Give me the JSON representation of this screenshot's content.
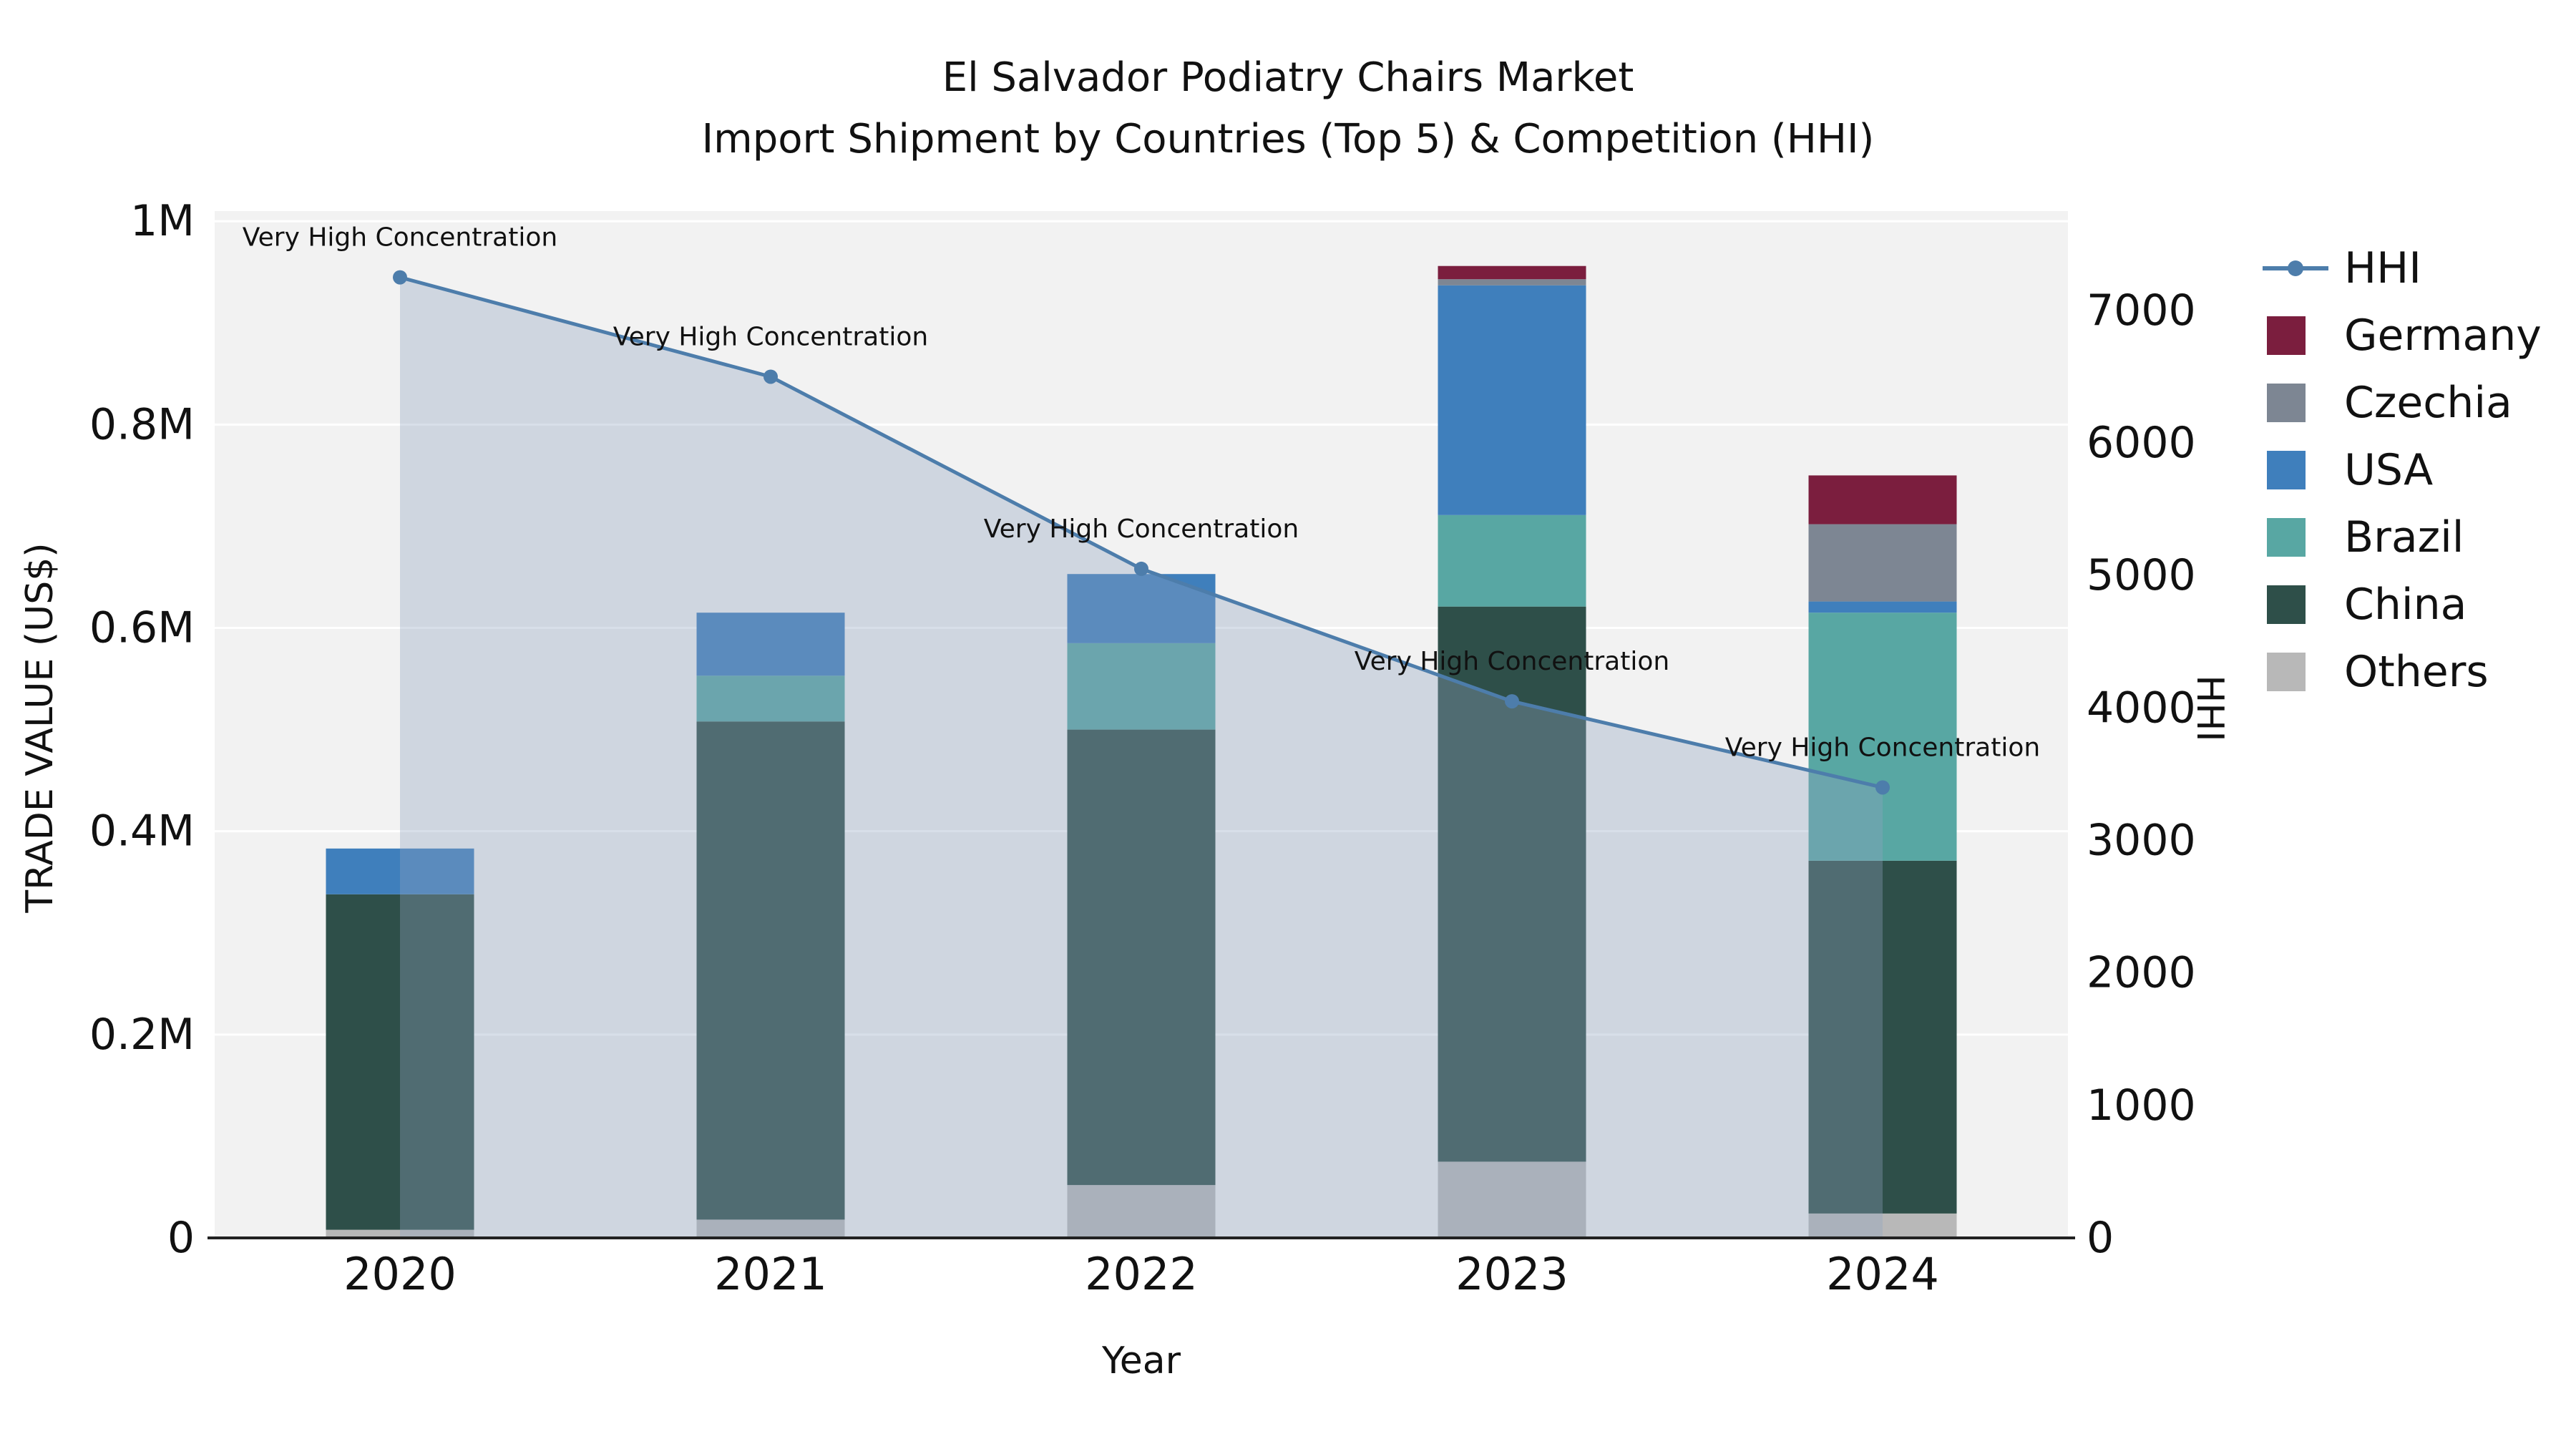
{
  "title": {
    "line1": "El Salvador Podiatry Chairs Market",
    "line2": "Import Shipment by Countries (Top 5) & Competition (HHI)"
  },
  "chart_data": {
    "type": "bar",
    "subtype": "stacked-bars-with-hhi-line-and-area",
    "categories": [
      "2020",
      "2021",
      "2022",
      "2023",
      "2024"
    ],
    "xlabel": "Year",
    "ylabel_left": "TRADE VALUE (US$)",
    "ylabel_right": "HHI",
    "y_left_ticks": [
      "0",
      "0.2M",
      "0.4M",
      "0.6M",
      "0.8M",
      "1M"
    ],
    "y_left_tick_values": [
      0,
      200000,
      400000,
      600000,
      800000,
      1000000
    ],
    "y_left_max": 1010000,
    "y_right_ticks": [
      0,
      1000,
      2000,
      3000,
      4000,
      5000,
      6000,
      7000
    ],
    "y_right_max": 7750,
    "grid": "horizontal",
    "plot_bg": "#f2f2f2",
    "series": [
      {
        "name": "Others",
        "color": "#b8b8b8",
        "values": [
          8000,
          18000,
          52000,
          75000,
          24000
        ]
      },
      {
        "name": "China",
        "color": "#2e4f49",
        "values": [
          330000,
          490000,
          448000,
          546000,
          347000
        ]
      },
      {
        "name": "Brazil",
        "color": "#58a7a3",
        "values": [
          0,
          45000,
          85000,
          90000,
          244000
        ]
      },
      {
        "name": "USA",
        "color": "#3f7fbc",
        "values": [
          45000,
          62000,
          68000,
          226000,
          11000
        ]
      },
      {
        "name": "Czechia",
        "color": "#7d8693",
        "values": [
          0,
          0,
          0,
          6000,
          76000
        ]
      },
      {
        "name": "Germany",
        "color": "#7b1e3e",
        "values": [
          0,
          0,
          0,
          13000,
          48000
        ]
      }
    ],
    "line_series": {
      "name": "HHI",
      "color": "#4d7dab",
      "area_color": "#8fa3bf",
      "area_opacity": 0.35,
      "values": [
        7250,
        6500,
        5050,
        4050,
        3400
      ]
    },
    "annotations": [
      "Very High Concentration",
      "Very High Concentration",
      "Very High Concentration",
      "Very High Concentration",
      "Very High Concentration"
    ],
    "legend_position": "right",
    "legend": [
      {
        "label": "HHI",
        "type": "line",
        "color": "#4d7dab"
      },
      {
        "label": "Germany",
        "type": "swatch",
        "color": "#7b1e3e"
      },
      {
        "label": "Czechia",
        "type": "swatch",
        "color": "#7d8693"
      },
      {
        "label": "USA",
        "type": "swatch",
        "color": "#3f7fbc"
      },
      {
        "label": "Brazil",
        "type": "swatch",
        "color": "#58a7a3"
      },
      {
        "label": "China",
        "type": "swatch",
        "color": "#2e4f49"
      },
      {
        "label": "Others",
        "type": "swatch",
        "color": "#b8b8b8"
      }
    ]
  }
}
